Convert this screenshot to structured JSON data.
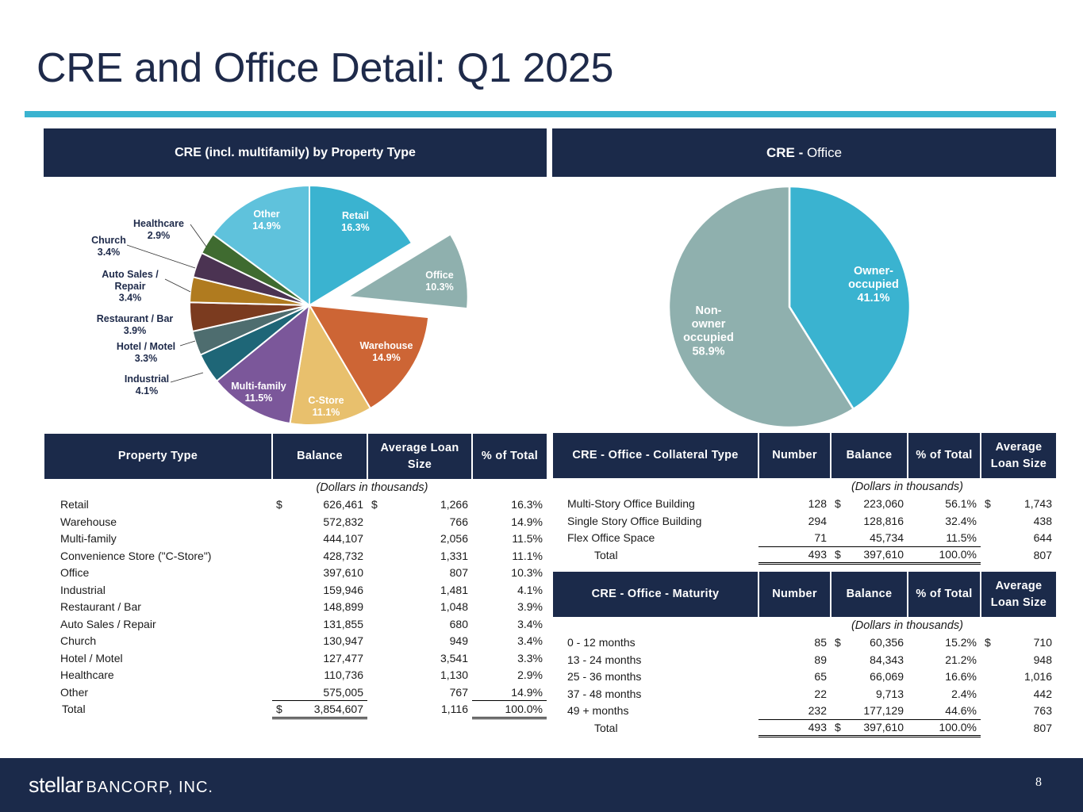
{
  "title": "CRE and Office Detail: Q1 2025",
  "colors": {
    "navy": "#1b2a4a",
    "accent": "#3ab3d0"
  },
  "left_section": {
    "header": "CRE (incl. multifamily) by Property Type"
  },
  "right_section": {
    "header_a": "CRE - ",
    "header_b": "Office"
  },
  "chart_data": [
    {
      "type": "pie",
      "title": "CRE (incl. multifamily) by Property Type",
      "slices": [
        {
          "label": "Retail",
          "value": 16.3,
          "pct_label": "16.3%",
          "color": "#3ab3d0"
        },
        {
          "label": "Office",
          "value": 10.3,
          "pct_label": "10.3%",
          "color": "#8fb0ae",
          "exploded": true
        },
        {
          "label": "Warehouse",
          "value": 14.9,
          "pct_label": "14.9%",
          "color": "#cd6535"
        },
        {
          "label": "C-Store",
          "value": 11.1,
          "pct_label": "11.1%",
          "color": "#e8c06d"
        },
        {
          "label": "Multi-family",
          "value": 11.5,
          "pct_label": "11.5%",
          "color": "#7b579a"
        },
        {
          "label": "Industrial",
          "value": 4.1,
          "pct_label": "4.1%",
          "color": "#1e6677"
        },
        {
          "label": "Hotel / Motel",
          "value": 3.3,
          "pct_label": "3.3%",
          "color": "#4e6d6f"
        },
        {
          "label": "Restaurant / Bar",
          "value": 3.9,
          "pct_label": "3.9%",
          "color": "#7b3b1f"
        },
        {
          "label": "Auto Sales / Repair",
          "value": 3.4,
          "pct_label": "3.4%",
          "color": "#b07b1f"
        },
        {
          "label": "Church",
          "value": 3.4,
          "pct_label": "3.4%",
          "color": "#4b3352"
        },
        {
          "label": "Healthcare",
          "value": 2.9,
          "pct_label": "2.9%",
          "color": "#3f6b30"
        },
        {
          "label": "Other",
          "value": 14.9,
          "pct_label": "14.9%",
          "color": "#5fc2dc"
        }
      ]
    },
    {
      "type": "pie",
      "title": "CRE - Office",
      "slices": [
        {
          "label": "Owner-occupied",
          "value": 41.1,
          "pct_label": "41.1%",
          "color": "#3ab3d0"
        },
        {
          "label": "Non-owner occupied",
          "value": 58.9,
          "pct_label": "58.9%",
          "color": "#8fb0ae"
        }
      ]
    }
  ],
  "property_table": {
    "headers": [
      "Property Type",
      "Balance",
      "Average Loan Size",
      "% of Total"
    ],
    "note": "(Dollars in thousands)",
    "rows": [
      {
        "type": "Retail",
        "cur": "$",
        "balance": "626,461",
        "cur2": "$",
        "avg": "1,266",
        "pct": "16.3%"
      },
      {
        "type": "Warehouse",
        "balance": "572,832",
        "avg": "766",
        "pct": "14.9%"
      },
      {
        "type": "Multi-family",
        "balance": "444,107",
        "avg": "2,056",
        "pct": "11.5%"
      },
      {
        "type": "Convenience Store (\"C-Store\")",
        "balance": "428,732",
        "avg": "1,331",
        "pct": "11.1%"
      },
      {
        "type": "Office",
        "balance": "397,610",
        "avg": "807",
        "pct": "10.3%"
      },
      {
        "type": "Industrial",
        "balance": "159,946",
        "avg": "1,481",
        "pct": "4.1%"
      },
      {
        "type": "Restaurant / Bar",
        "balance": "148,899",
        "avg": "1,048",
        "pct": "3.9%"
      },
      {
        "type": "Auto Sales / Repair",
        "balance": "131,855",
        "avg": "680",
        "pct": "3.4%"
      },
      {
        "type": "Church",
        "balance": "130,947",
        "avg": "949",
        "pct": "3.4%"
      },
      {
        "type": "Hotel / Motel",
        "balance": "127,477",
        "avg": "3,541",
        "pct": "3.3%"
      },
      {
        "type": "Healthcare",
        "balance": "110,736",
        "avg": "1,130",
        "pct": "2.9%"
      },
      {
        "type": "Other",
        "balance": "575,005",
        "avg": "767",
        "pct": "14.9%"
      }
    ],
    "total": {
      "label": "Total",
      "cur": "$",
      "balance": "3,854,607",
      "avg": "1,116",
      "pct": "100.0%"
    }
  },
  "collateral_table": {
    "headers": [
      "CRE - Office - Collateral Type",
      "Number",
      "Balance",
      "% of Total",
      "Average Loan Size"
    ],
    "note": "(Dollars in thousands)",
    "rows": [
      {
        "type": "Multi-Story Office Building",
        "number": "128",
        "cur": "$",
        "balance": "223,060",
        "pct": "56.1%",
        "cur2": "$",
        "avg": "1,743"
      },
      {
        "type": "Single Story Office Building",
        "number": "294",
        "balance": "128,816",
        "pct": "32.4%",
        "avg": "438"
      },
      {
        "type": "Flex Office Space",
        "number": "71",
        "balance": "45,734",
        "pct": "11.5%",
        "avg": "644"
      }
    ],
    "total": {
      "label": "Total",
      "number": "493",
      "cur": "$",
      "balance": "397,610",
      "pct": "100.0%",
      "avg": "807"
    }
  },
  "maturity_table": {
    "headers": [
      "CRE - Office - Maturity",
      "Number",
      "Balance",
      "% of Total",
      "Average Loan Size"
    ],
    "note": "(Dollars in thousands)",
    "rows": [
      {
        "type": "0 - 12 months",
        "number": "85",
        "cur": "$",
        "balance": "60,356",
        "pct": "15.2%",
        "cur2": "$",
        "avg": "710"
      },
      {
        "type": "13 - 24 months",
        "number": "89",
        "balance": "84,343",
        "pct": "21.2%",
        "avg": "948"
      },
      {
        "type": "25 - 36 months",
        "number": "65",
        "balance": "66,069",
        "pct": "16.6%",
        "avg": "1,016"
      },
      {
        "type": "37 - 48 months",
        "number": "22",
        "balance": "9,713",
        "pct": "2.4%",
        "avg": "442"
      },
      {
        "type": "49 + months",
        "number": "232",
        "balance": "177,129",
        "pct": "44.6%",
        "avg": "763"
      }
    ],
    "total": {
      "label": "Total",
      "number": "493",
      "cur": "$",
      "balance": "397,610",
      "pct": "100.0%",
      "avg": "807"
    }
  },
  "footer": {
    "logo_word1": "stellar",
    "logo_word2": "BANCORP, INC.",
    "page_number": "8"
  }
}
